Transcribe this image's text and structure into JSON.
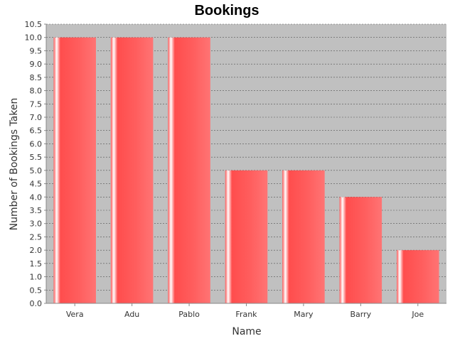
{
  "chart_data": {
    "type": "bar",
    "title": "Bookings",
    "xlabel": "Name",
    "ylabel": "Number of Bookings Taken",
    "categories": [
      "Vera",
      "Adu",
      "Pablo",
      "Frank",
      "Mary",
      "Barry",
      "Joe"
    ],
    "values": [
      10,
      10,
      10,
      5,
      5,
      4,
      2
    ],
    "ylim": [
      0,
      10.5
    ],
    "ytick_step": 0.5,
    "grid": true,
    "legend": "none",
    "colors": {
      "bar": "#ff5a5a",
      "bar_highlight": "#ffffff",
      "plot_background": "#c0c0c0",
      "grid": "#555555"
    }
  }
}
